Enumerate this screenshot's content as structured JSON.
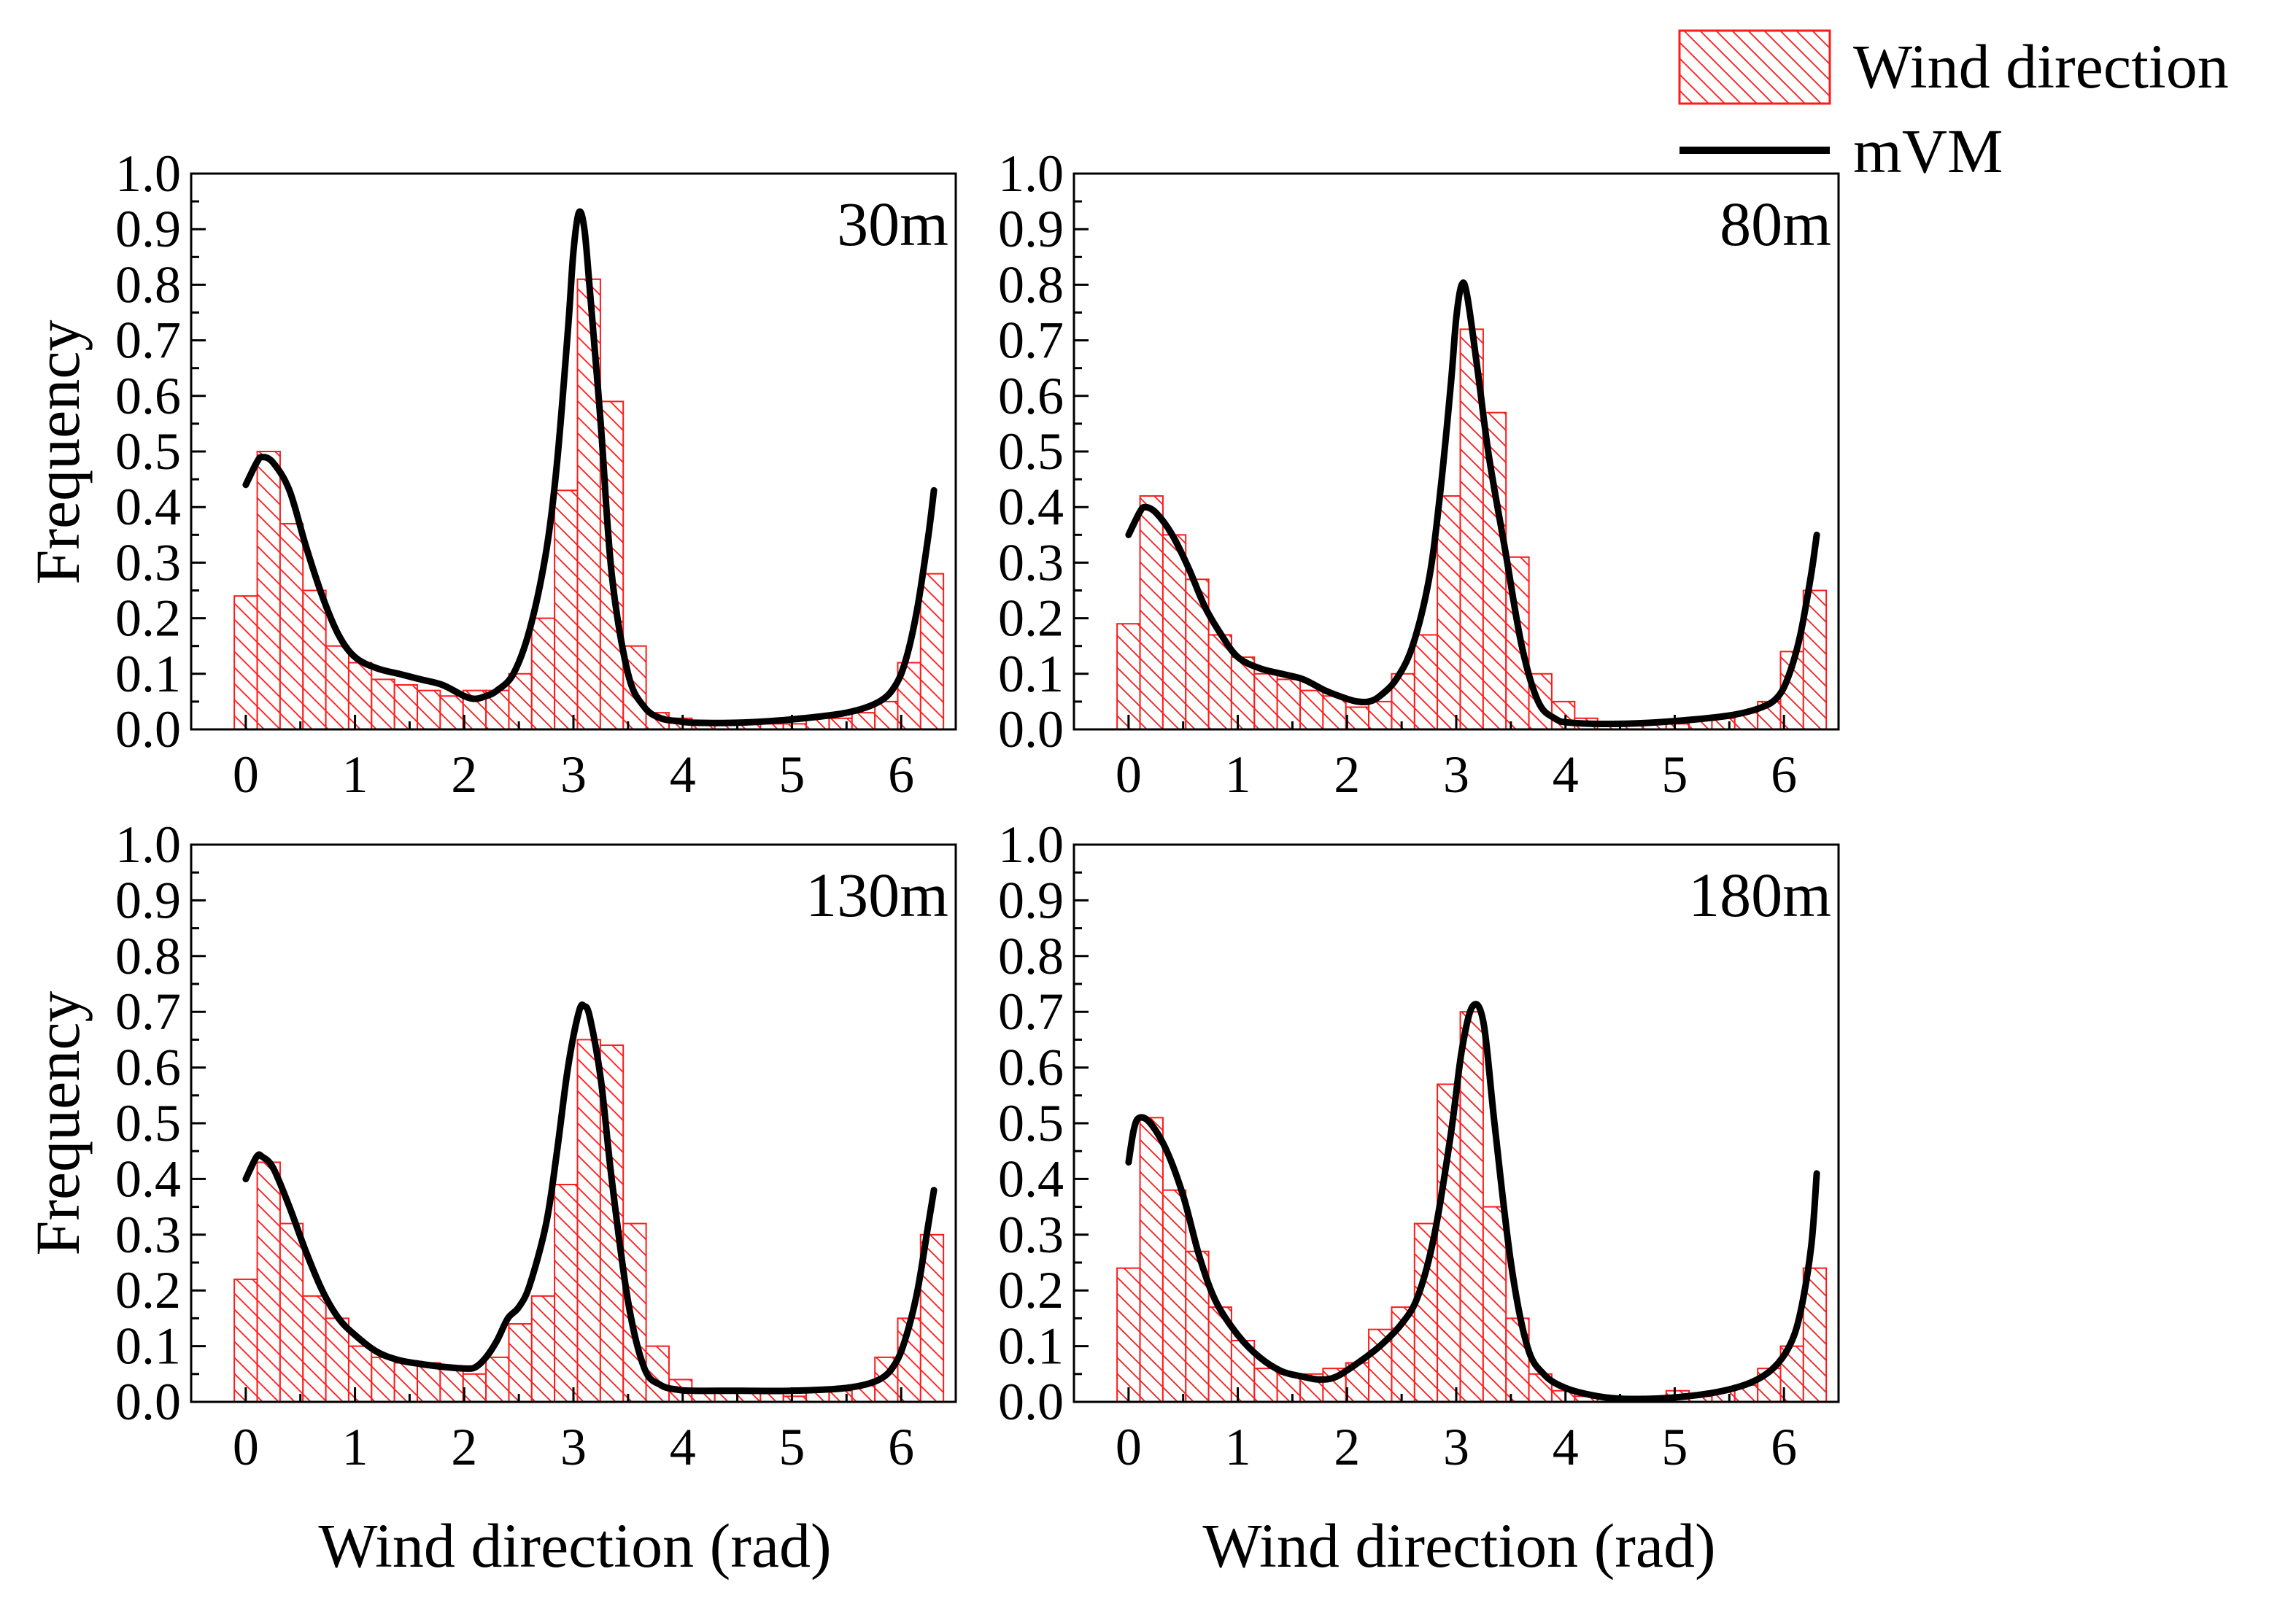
{
  "colors": {
    "bar": "#ff1a1a",
    "curve": "#000000",
    "axis": "#000000"
  },
  "legend": {
    "histogram_label": "Wind direction",
    "curve_label": "mVM",
    "placement": "top-right"
  },
  "x_label": "Wind direction (rad)",
  "y_label": "Frequency",
  "chart_data": [
    {
      "type": "bar",
      "panel": "top-left",
      "title": "30m",
      "xlabel": "Wind direction (rad)",
      "ylabel": "Frequency",
      "xlim": [
        -0.5,
        6.5
      ],
      "ylim": [
        0,
        1.0
      ],
      "xticks": [
        "0",
        "1",
        "2",
        "3",
        "4",
        "5",
        "6"
      ],
      "yticks": [
        "0.0",
        "0.1",
        "0.2",
        "0.3",
        "0.4",
        "0.5",
        "0.6",
        "0.7",
        "0.8",
        "0.9",
        "1.0"
      ],
      "bin_width": 0.2094,
      "bins": [
        -0.105,
        0.105,
        0.314,
        0.524,
        0.733,
        0.942,
        1.152,
        1.361,
        1.571,
        1.78,
        1.99,
        2.199,
        2.409,
        2.618,
        2.827,
        3.037,
        3.246,
        3.456,
        3.665,
        3.875,
        4.084,
        4.294,
        4.503,
        4.712,
        4.922,
        5.131,
        5.341,
        5.55,
        5.76,
        5.969,
        6.178
      ],
      "values": [
        0.24,
        0.5,
        0.37,
        0.25,
        0.15,
        0.12,
        0.09,
        0.08,
        0.07,
        0.06,
        0.07,
        0.07,
        0.1,
        0.2,
        0.43,
        0.81,
        0.59,
        0.15,
        0.03,
        0.02,
        0.01,
        0.01,
        0.01,
        0.01,
        0.01,
        0.02,
        0.02,
        0.03,
        0.05,
        0.12,
        0.28
      ],
      "series": [
        {
          "name": "mVM",
          "x": [
            0.0,
            0.1,
            0.15,
            0.25,
            0.4,
            0.55,
            0.7,
            0.85,
            1.0,
            1.2,
            1.4,
            1.6,
            1.8,
            2.0,
            2.1,
            2.2,
            2.3,
            2.45,
            2.6,
            2.75,
            2.85,
            2.95,
            3.0,
            3.05,
            3.1,
            3.15,
            3.25,
            3.35,
            3.5,
            3.65,
            3.8,
            3.95,
            4.1,
            4.5,
            5.0,
            5.5,
            5.8,
            5.95,
            6.05,
            6.15,
            6.25,
            6.3
          ],
          "y": [
            0.44,
            0.48,
            0.49,
            0.48,
            0.43,
            0.33,
            0.24,
            0.17,
            0.13,
            0.11,
            0.1,
            0.09,
            0.08,
            0.06,
            0.055,
            0.06,
            0.07,
            0.1,
            0.18,
            0.32,
            0.48,
            0.72,
            0.86,
            0.93,
            0.9,
            0.79,
            0.55,
            0.28,
            0.1,
            0.04,
            0.02,
            0.015,
            0.012,
            0.012,
            0.018,
            0.03,
            0.05,
            0.08,
            0.13,
            0.22,
            0.35,
            0.43
          ]
        }
      ]
    },
    {
      "type": "bar",
      "panel": "top-right",
      "title": "80m",
      "xlabel": "Wind direction (rad)",
      "ylabel": "Frequency",
      "xlim": [
        -0.5,
        6.5
      ],
      "ylim": [
        0,
        1.0
      ],
      "xticks": [
        "0",
        "1",
        "2",
        "3",
        "4",
        "5",
        "6"
      ],
      "yticks": [
        "0.0",
        "0.1",
        "0.2",
        "0.3",
        "0.4",
        "0.5",
        "0.6",
        "0.7",
        "0.8",
        "0.9",
        "1.0"
      ],
      "bin_width": 0.2094,
      "bins": [
        -0.105,
        0.105,
        0.314,
        0.524,
        0.733,
        0.942,
        1.152,
        1.361,
        1.571,
        1.78,
        1.99,
        2.199,
        2.409,
        2.618,
        2.827,
        3.037,
        3.246,
        3.456,
        3.665,
        3.875,
        4.084,
        4.294,
        4.503,
        4.712,
        4.922,
        5.131,
        5.341,
        5.55,
        5.76,
        5.969,
        6.178
      ],
      "values": [
        0.19,
        0.42,
        0.35,
        0.27,
        0.17,
        0.13,
        0.1,
        0.09,
        0.07,
        0.06,
        0.04,
        0.05,
        0.1,
        0.17,
        0.42,
        0.72,
        0.57,
        0.31,
        0.1,
        0.05,
        0.02,
        0.01,
        0.01,
        0.01,
        0.01,
        0.02,
        0.02,
        0.03,
        0.05,
        0.14,
        0.25
      ],
      "series": [
        {
          "name": "mVM",
          "x": [
            0.0,
            0.1,
            0.15,
            0.25,
            0.4,
            0.55,
            0.7,
            0.85,
            1.0,
            1.2,
            1.4,
            1.6,
            1.8,
            2.0,
            2.1,
            2.2,
            2.3,
            2.45,
            2.6,
            2.75,
            2.85,
            2.95,
            3.0,
            3.05,
            3.1,
            3.2,
            3.3,
            3.45,
            3.6,
            3.75,
            3.9,
            4.05,
            4.5,
            5.0,
            5.5,
            5.8,
            5.95,
            6.05,
            6.15,
            6.25,
            6.3
          ],
          "y": [
            0.35,
            0.39,
            0.4,
            0.39,
            0.35,
            0.29,
            0.22,
            0.17,
            0.13,
            0.11,
            0.1,
            0.09,
            0.07,
            0.055,
            0.05,
            0.05,
            0.06,
            0.09,
            0.15,
            0.27,
            0.42,
            0.62,
            0.74,
            0.8,
            0.78,
            0.64,
            0.49,
            0.32,
            0.15,
            0.05,
            0.02,
            0.012,
            0.01,
            0.015,
            0.025,
            0.04,
            0.06,
            0.1,
            0.17,
            0.28,
            0.35
          ]
        }
      ]
    },
    {
      "type": "bar",
      "panel": "bottom-left",
      "title": "130m",
      "xlabel": "Wind direction (rad)",
      "ylabel": "Frequency",
      "xlim": [
        -0.5,
        6.5
      ],
      "ylim": [
        0,
        1.0
      ],
      "xticks": [
        "0",
        "1",
        "2",
        "3",
        "4",
        "5",
        "6"
      ],
      "yticks": [
        "0.0",
        "0.1",
        "0.2",
        "0.3",
        "0.4",
        "0.5",
        "0.6",
        "0.7",
        "0.8",
        "0.9",
        "1.0"
      ],
      "bin_width": 0.2094,
      "bins": [
        -0.105,
        0.105,
        0.314,
        0.524,
        0.733,
        0.942,
        1.152,
        1.361,
        1.571,
        1.78,
        1.99,
        2.199,
        2.409,
        2.618,
        2.827,
        3.037,
        3.246,
        3.456,
        3.665,
        3.875,
        4.084,
        4.294,
        4.503,
        4.712,
        4.922,
        5.131,
        5.341,
        5.55,
        5.76,
        5.969,
        6.178
      ],
      "values": [
        0.22,
        0.43,
        0.32,
        0.19,
        0.15,
        0.1,
        0.08,
        0.07,
        0.07,
        0.06,
        0.05,
        0.08,
        0.14,
        0.19,
        0.39,
        0.65,
        0.64,
        0.32,
        0.1,
        0.04,
        0.02,
        0.02,
        0.02,
        0.02,
        0.01,
        0.02,
        0.02,
        0.03,
        0.08,
        0.15,
        0.3
      ],
      "series": [
        {
          "name": "mVM",
          "x": [
            0.0,
            0.1,
            0.15,
            0.25,
            0.4,
            0.55,
            0.7,
            0.85,
            1.0,
            1.2,
            1.4,
            1.6,
            1.8,
            2.0,
            2.1,
            2.2,
            2.3,
            2.4,
            2.5,
            2.6,
            2.75,
            2.85,
            2.95,
            3.05,
            3.1,
            3.15,
            3.25,
            3.35,
            3.5,
            3.65,
            3.8,
            3.95,
            4.1,
            4.5,
            5.0,
            5.5,
            5.8,
            5.95,
            6.05,
            6.15,
            6.25,
            6.3
          ],
          "y": [
            0.4,
            0.44,
            0.44,
            0.42,
            0.35,
            0.27,
            0.2,
            0.15,
            0.12,
            0.09,
            0.075,
            0.068,
            0.063,
            0.06,
            0.062,
            0.08,
            0.11,
            0.15,
            0.17,
            0.21,
            0.32,
            0.45,
            0.6,
            0.7,
            0.71,
            0.69,
            0.58,
            0.4,
            0.18,
            0.06,
            0.03,
            0.022,
            0.02,
            0.02,
            0.02,
            0.025,
            0.04,
            0.07,
            0.12,
            0.2,
            0.32,
            0.38
          ]
        }
      ]
    },
    {
      "type": "bar",
      "panel": "bottom-right",
      "title": "180m",
      "xlabel": "Wind direction (rad)",
      "ylabel": "Frequency",
      "xlim": [
        -0.5,
        6.5
      ],
      "ylim": [
        0,
        1.0
      ],
      "xticks": [
        "0",
        "1",
        "2",
        "3",
        "4",
        "5",
        "6"
      ],
      "yticks": [
        "0.0",
        "0.1",
        "0.2",
        "0.3",
        "0.4",
        "0.5",
        "0.6",
        "0.7",
        "0.8",
        "0.9",
        "1.0"
      ],
      "bin_width": 0.2094,
      "bins": [
        -0.105,
        0.105,
        0.314,
        0.524,
        0.733,
        0.942,
        1.152,
        1.361,
        1.571,
        1.78,
        1.99,
        2.199,
        2.409,
        2.618,
        2.827,
        3.037,
        3.246,
        3.456,
        3.665,
        3.875,
        4.084,
        4.294,
        4.503,
        4.712,
        4.922,
        5.131,
        5.341,
        5.55,
        5.76,
        5.969,
        6.178
      ],
      "values": [
        0.24,
        0.51,
        0.38,
        0.27,
        0.17,
        0.11,
        0.06,
        0.05,
        0.05,
        0.06,
        0.07,
        0.13,
        0.17,
        0.32,
        0.57,
        0.7,
        0.35,
        0.15,
        0.05,
        0.02,
        0.01,
        0.01,
        0.01,
        0.01,
        0.02,
        0.01,
        0.02,
        0.03,
        0.06,
        0.1,
        0.24
      ],
      "series": [
        {
          "name": "mVM",
          "x": [
            0.0,
            0.05,
            0.1,
            0.2,
            0.35,
            0.5,
            0.65,
            0.8,
            1.0,
            1.2,
            1.4,
            1.6,
            1.75,
            1.9,
            2.1,
            2.3,
            2.5,
            2.65,
            2.8,
            2.95,
            3.05,
            3.15,
            3.25,
            3.35,
            3.5,
            3.65,
            3.8,
            4.0,
            4.3,
            4.6,
            5.0,
            5.4,
            5.7,
            5.9,
            6.05,
            6.15,
            6.25,
            6.3
          ],
          "y": [
            0.43,
            0.49,
            0.51,
            0.5,
            0.45,
            0.37,
            0.26,
            0.18,
            0.12,
            0.08,
            0.055,
            0.045,
            0.04,
            0.045,
            0.07,
            0.1,
            0.14,
            0.19,
            0.3,
            0.48,
            0.63,
            0.71,
            0.68,
            0.5,
            0.25,
            0.1,
            0.05,
            0.025,
            0.01,
            0.005,
            0.008,
            0.018,
            0.035,
            0.06,
            0.1,
            0.16,
            0.28,
            0.41
          ]
        }
      ]
    }
  ]
}
